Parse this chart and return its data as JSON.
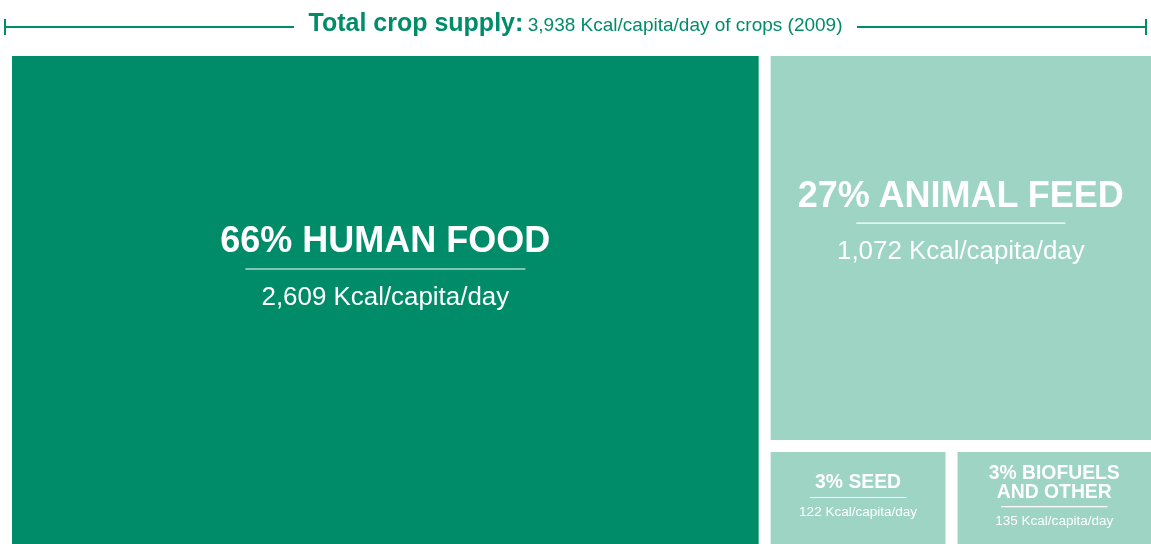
{
  "chart_data": {
    "type": "other",
    "title": "Total crop supply:",
    "subtitle": "3,938 Kcal/capita/day of crops (2009)",
    "categories": [
      "66% HUMAN FOOD",
      "27% ANIMAL FEED",
      "3% SEED",
      "3% BIOFUELS AND OTHER"
    ],
    "values": [
      2609,
      1072,
      122,
      135
    ],
    "value_labels": [
      "2,609 Kcal/capita/day",
      "1,072 Kcal/capita/day",
      "122 Kcal/capita/day",
      "135 Kcal/capita/day"
    ],
    "colors": [
      "#008c69",
      "#9dd4c4",
      "#9dd4c4",
      "#9dd4c4"
    ]
  }
}
